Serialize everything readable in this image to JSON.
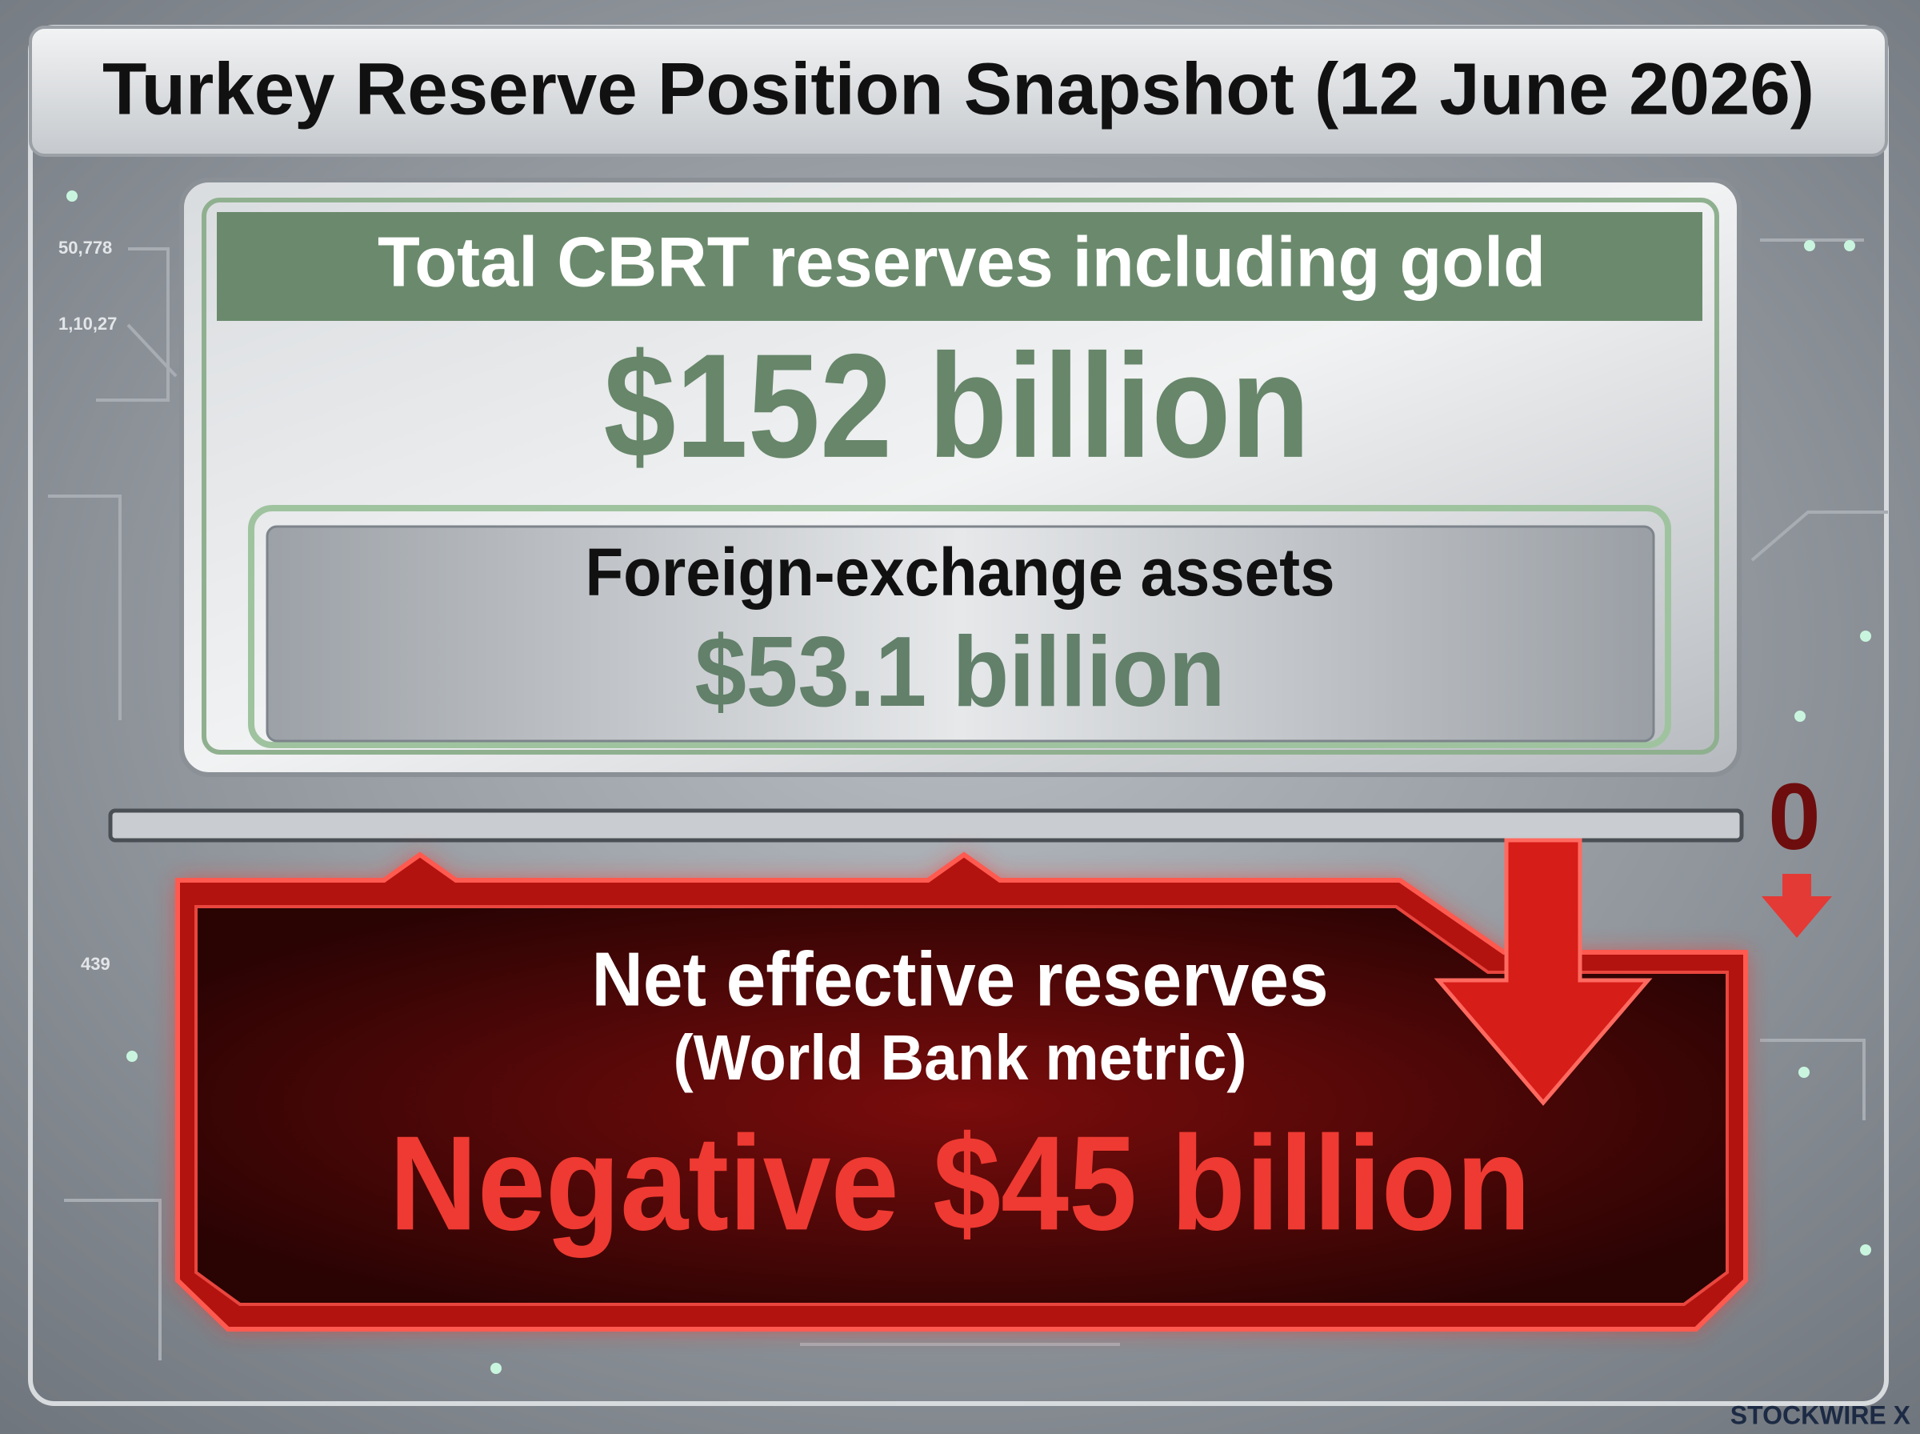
{
  "header": {
    "title": "Turkey Reserve Position Snapshot (12 June 2026)"
  },
  "total_card": {
    "heading": "Total CBRT reserves including gold",
    "value": "$152 billion",
    "sub_card": {
      "heading": "Foreign-exchange assets",
      "value": "$53.1 billion"
    }
  },
  "zero_marker": "0",
  "net_card": {
    "heading": "Net effective reserves",
    "subheading": "(World Bank metric)",
    "value": "Negative $45 billion"
  },
  "background_labels": [
    "50,778",
    "1,10,27",
    "439"
  ],
  "brand": "STOCKWIRE X"
}
